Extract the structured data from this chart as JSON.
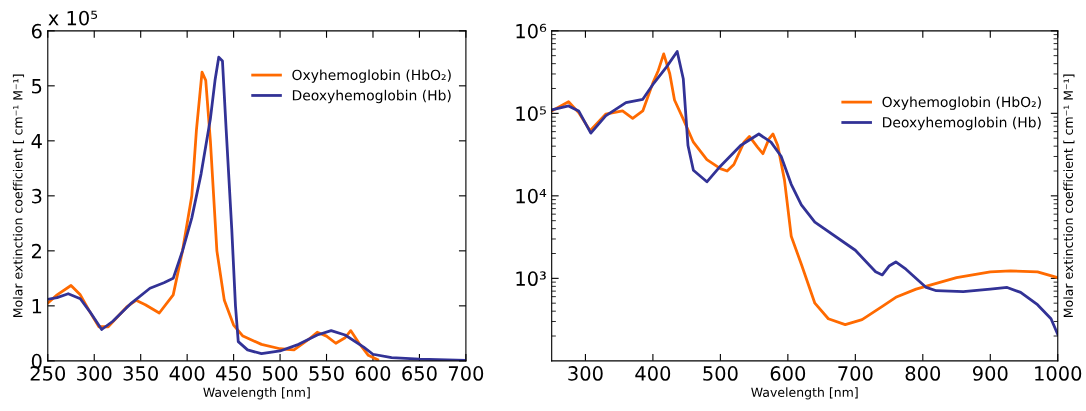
{
  "chart_data": [
    {
      "type": "line",
      "xlabel": "Wavelength [nm]",
      "ylabel": "Molar extinction coefficient [ cm⁻¹ M⁻¹]",
      "annotations": [
        "x 10⁵"
      ],
      "xlim": [
        250,
        700
      ],
      "xticks": [
        250,
        300,
        350,
        400,
        450,
        500,
        550,
        600,
        650,
        700
      ],
      "ylim": [
        0,
        6
      ],
      "yticks": [
        0,
        1,
        2,
        3,
        4,
        5,
        6
      ],
      "grid": false,
      "legend": "top right",
      "line_style": "solid",
      "marker": "none",
      "series": [
        {
          "name": "Oxyhemoglobin (HbO₂)",
          "color": "#ff6a00",
          "x": [
            250,
            260,
            275,
            285,
            295,
            305,
            315,
            335,
            345,
            355,
            370,
            385,
            395,
            405,
            410,
            416,
            420,
            425,
            432,
            440,
            450,
            460,
            480,
            500,
            515,
            530,
            540,
            550,
            560,
            570,
            576,
            585,
            595,
            605
          ],
          "values": [
            1.05,
            1.2,
            1.37,
            1.2,
            0.9,
            0.62,
            0.62,
            0.98,
            1.1,
            1.02,
            0.87,
            1.2,
            2.0,
            3.0,
            4.2,
            5.25,
            5.1,
            4.0,
            2.0,
            1.1,
            0.65,
            0.45,
            0.3,
            0.22,
            0.2,
            0.38,
            0.52,
            0.45,
            0.32,
            0.42,
            0.55,
            0.32,
            0.1,
            0.02
          ]
        },
        {
          "name": "Deoxyhemoglobin (Hb)",
          "color": "#323296",
          "x": [
            250,
            260,
            272,
            285,
            295,
            308,
            320,
            340,
            360,
            375,
            385,
            395,
            405,
            415,
            425,
            430,
            434,
            438,
            442,
            448,
            452,
            455,
            465,
            480,
            500,
            520,
            540,
            555,
            570,
            590,
            600,
            620,
            650,
            700
          ],
          "values": [
            1.12,
            1.15,
            1.22,
            1.13,
            0.9,
            0.57,
            0.72,
            1.05,
            1.32,
            1.42,
            1.5,
            2.0,
            2.6,
            3.4,
            4.4,
            5.1,
            5.52,
            5.45,
            4.2,
            2.4,
            1.0,
            0.35,
            0.2,
            0.13,
            0.18,
            0.3,
            0.47,
            0.55,
            0.47,
            0.25,
            0.12,
            0.06,
            0.03,
            0.01
          ]
        }
      ]
    },
    {
      "type": "line",
      "xlabel": "Wavelength [nm]",
      "ylabel": "Molar extinction coefficient [ cm⁻¹ M⁻¹]",
      "log": "y",
      "xlim": [
        250,
        1000
      ],
      "xticks": [
        300,
        400,
        500,
        600,
        700,
        800,
        900,
        1000
      ],
      "ylim": [
        100,
        1000000
      ],
      "yticks": [
        {
          "value": 1000,
          "label": "10³"
        },
        {
          "value": 10000,
          "label": "10⁴"
        },
        {
          "value": 100000,
          "label": "10⁵"
        },
        {
          "value": 1000000,
          "label": "10⁶"
        }
      ],
      "grid": false,
      "legend": "right",
      "line_style": "solid",
      "marker": "none",
      "series": [
        {
          "name": "Oxyhemoglobin (HbO₂)",
          "color": "#ff6a00",
          "x": [
            250,
            275,
            290,
            307,
            330,
            355,
            370,
            385,
            400,
            408,
            416,
            425,
            432,
            445,
            460,
            480,
            500,
            510,
            520,
            535,
            543,
            555,
            563,
            572,
            578,
            585,
            595,
            605,
            620,
            640,
            660,
            685,
            710,
            740,
            760,
            790,
            820,
            850,
            900,
            930,
            970,
            1000
          ],
          "values": [
            107000,
            138000,
            102000,
            61700,
            97700,
            107000,
            87100,
            107000,
            234000,
            331000,
            525000,
            302000,
            145000,
            85100,
            44700,
            27500,
            21400,
            20000,
            24000,
            44700,
            52500,
            38900,
            32400,
            49000,
            56200,
            40700,
            15500,
            3240,
            1480,
            500,
            324,
            275,
            316,
            457,
            589,
            741,
            871,
            1020,
            1200,
            1230,
            1200,
            1020
          ]
        },
        {
          "name": "Deoxyhemoglobin (Hb)",
          "color": "#323296",
          "x": [
            250,
            275,
            290,
            308,
            330,
            360,
            385,
            400,
            420,
            436,
            445,
            452,
            460,
            480,
            500,
            530,
            557,
            575,
            590,
            605,
            620,
            640,
            700,
            730,
            740,
            750,
            760,
            775,
            805,
            820,
            860,
            900,
            925,
            945,
            970,
            990,
            1000
          ],
          "values": [
            110000,
            123000,
            107000,
            57500,
            93300,
            135000,
            148000,
            224000,
            363000,
            562000,
            263000,
            40700,
            20400,
            14800,
            22900,
            40700,
            56200,
            44700,
            30200,
            13800,
            7760,
            4790,
            2190,
            1200,
            1100,
            1410,
            1580,
            1290,
            776,
            708,
            692,
            741,
            776,
            676,
            479,
            324,
            209
          ]
        }
      ]
    }
  ]
}
